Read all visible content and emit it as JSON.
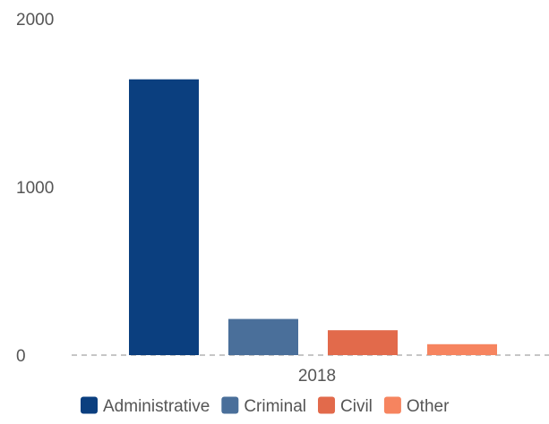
{
  "chart_data": {
    "type": "bar",
    "categories": [
      "2018"
    ],
    "series": [
      {
        "name": "Administrative",
        "values": [
          1640
        ],
        "color": "#0b3f7f"
      },
      {
        "name": "Criminal",
        "values": [
          215
        ],
        "color": "#4a6f9a"
      },
      {
        "name": "Civil",
        "values": [
          148
        ],
        "color": "#e26a4b"
      },
      {
        "name": "Other",
        "values": [
          65
        ],
        "color": "#f6845f"
      }
    ],
    "yticks": [
      "0",
      "1000",
      "2000"
    ],
    "ylim": [
      0,
      2000
    ],
    "title": "",
    "xlabel": "",
    "ylabel": "",
    "grid": false,
    "legend_position": "bottom"
  }
}
